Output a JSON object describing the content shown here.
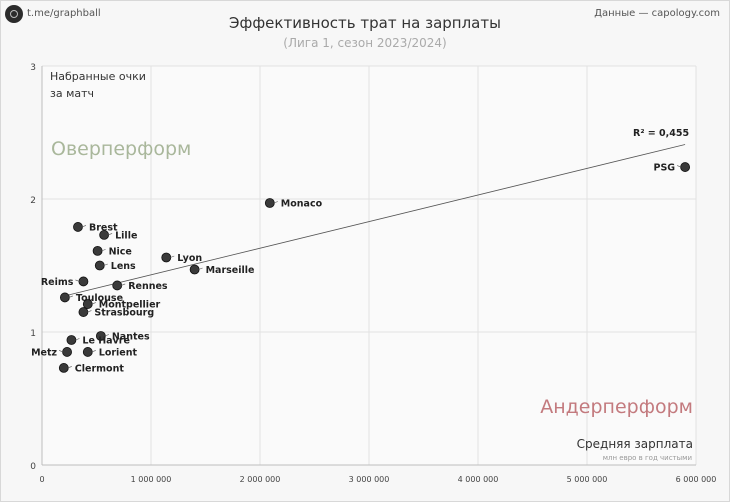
{
  "header": {
    "brand": "t.me/graphball",
    "source": "Данные — capology.com",
    "title": "Эффективность трат на зарплаты",
    "subtitle": "(Лига 1, сезон 2023/2024)"
  },
  "annotations": {
    "overperform": "Оверперформ",
    "underperform": "Андерперформ",
    "r2": "R² = 0,455"
  },
  "chart_data": {
    "type": "scatter",
    "title": "Эффективность трат на зарплаты",
    "subtitle": "(Лига 1, сезон 2023/2024)",
    "xlabel": "Средняя зарплата",
    "xlabel_sub": "млн евро в год чистыми",
    "ylabel_line1": "Набранные очки",
    "ylabel_line2": "за матч",
    "xlim": [
      0,
      6000000
    ],
    "ylim": [
      0,
      3
    ],
    "xticks": [
      0,
      1000000,
      2000000,
      3000000,
      4000000,
      5000000,
      6000000
    ],
    "xtick_labels": [
      "0",
      "1 000 000",
      "2 000 000",
      "3 000 000",
      "4 000 000",
      "5 000 000",
      "6 000 000"
    ],
    "yticks": [
      0,
      1,
      2,
      3
    ],
    "ytick_labels": [
      "0",
      "1",
      "2",
      "3"
    ],
    "grid": true,
    "point_color": "#3a3a3a",
    "trendline": {
      "r2": 0.455,
      "x": [
        200000,
        5900000
      ],
      "y": [
        1.27,
        2.41
      ]
    },
    "points": [
      {
        "label": "PSG",
        "x": 5900000,
        "y": 2.24,
        "label_pos": "left"
      },
      {
        "label": "Monaco",
        "x": 2090000,
        "y": 1.97,
        "label_pos": "right"
      },
      {
        "label": "Brest",
        "x": 330000,
        "y": 1.79,
        "label_pos": "right"
      },
      {
        "label": "Lille",
        "x": 570000,
        "y": 1.73,
        "label_pos": "right"
      },
      {
        "label": "Nice",
        "x": 510000,
        "y": 1.61,
        "label_pos": "right"
      },
      {
        "label": "Lyon",
        "x": 1140000,
        "y": 1.56,
        "label_pos": "right"
      },
      {
        "label": "Lens",
        "x": 530000,
        "y": 1.5,
        "label_pos": "right"
      },
      {
        "label": "Marseille",
        "x": 1400000,
        "y": 1.47,
        "label_pos": "right"
      },
      {
        "label": "Reims",
        "x": 380000,
        "y": 1.38,
        "label_pos": "left"
      },
      {
        "label": "Rennes",
        "x": 690000,
        "y": 1.35,
        "label_pos": "right"
      },
      {
        "label": "Toulouse",
        "x": 210000,
        "y": 1.26,
        "label_pos": "right"
      },
      {
        "label": "Montpellier",
        "x": 420000,
        "y": 1.21,
        "label_pos": "right"
      },
      {
        "label": "Strasbourg",
        "x": 380000,
        "y": 1.15,
        "label_pos": "right"
      },
      {
        "label": "Nantes",
        "x": 540000,
        "y": 0.97,
        "label_pos": "right"
      },
      {
        "label": "Le Havre",
        "x": 270000,
        "y": 0.94,
        "label_pos": "right"
      },
      {
        "label": "Metz",
        "x": 230000,
        "y": 0.85,
        "label_pos": "left"
      },
      {
        "label": "Lorient",
        "x": 420000,
        "y": 0.85,
        "label_pos": "right"
      },
      {
        "label": "Clermont",
        "x": 200000,
        "y": 0.73,
        "label_pos": "right"
      }
    ]
  }
}
